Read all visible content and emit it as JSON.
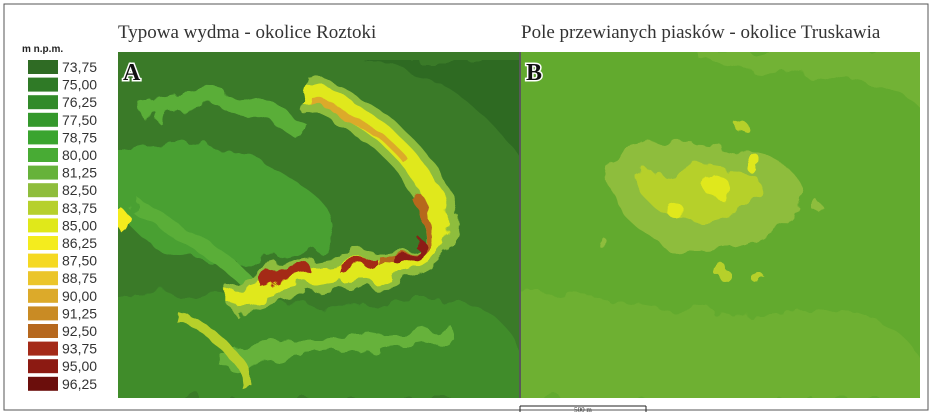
{
  "panels": [
    {
      "letter": "A",
      "title": "Typowa wydma - okolice Roztoki"
    },
    {
      "letter": "B",
      "title": "Pole przewianych piasków - okolice Truskawia"
    }
  ],
  "legend": {
    "title": "m n.p.m.",
    "items": [
      {
        "label": "73,75",
        "color": "#2f6b24"
      },
      {
        "label": "75,00",
        "color": "#2f7a26"
      },
      {
        "label": "76,25",
        "color": "#318a29"
      },
      {
        "label": "77,50",
        "color": "#34982c"
      },
      {
        "label": "78,75",
        "color": "#3aa42f"
      },
      {
        "label": "80,00",
        "color": "#48ab34"
      },
      {
        "label": "81,25",
        "color": "#66b23a"
      },
      {
        "label": "82,50",
        "color": "#8ebd3c"
      },
      {
        "label": "83,75",
        "color": "#b6d02c"
      },
      {
        "label": "85,00",
        "color": "#e0e81a"
      },
      {
        "label": "86,25",
        "color": "#f4ec1e"
      },
      {
        "label": "87,50",
        "color": "#f5d922"
      },
      {
        "label": "88,75",
        "color": "#ebc52a"
      },
      {
        "label": "90,00",
        "color": "#dcaa2a"
      },
      {
        "label": "91,25",
        "color": "#c98b24"
      },
      {
        "label": "92,50",
        "color": "#b6681e"
      },
      {
        "label": "93,75",
        "color": "#a42a18"
      },
      {
        "label": "95,00",
        "color": "#8c1a12"
      },
      {
        "label": "96,25",
        "color": "#6b0e0c"
      }
    ]
  },
  "scale": {
    "label": "500 m"
  }
}
